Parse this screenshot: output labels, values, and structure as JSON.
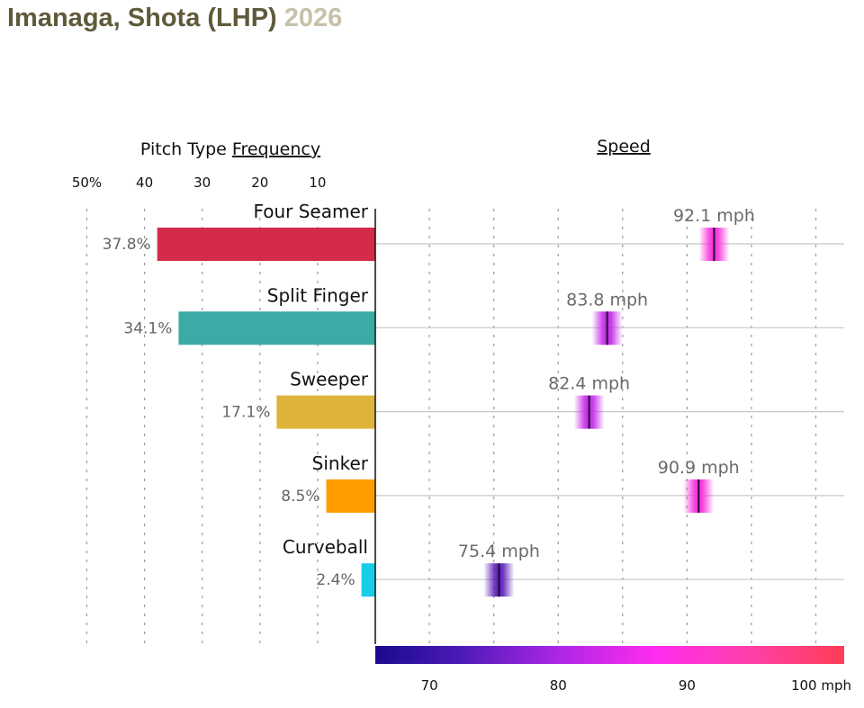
{
  "header": {
    "player": "Imanaga, Shota (LHP)",
    "year": "2026"
  },
  "chart_data": {
    "type": "bar",
    "freq_title_plain": "Pitch Type ",
    "freq_title_underlined": "Frequency",
    "speed_title": "Speed",
    "freq_ticks": [
      "50%",
      "40",
      "30",
      "20",
      "10"
    ],
    "freq_tick_values": [
      50,
      40,
      30,
      20,
      10
    ],
    "speed_ticks": [
      "70",
      "80",
      "90",
      "100 mph"
    ],
    "speed_tick_values": [
      70,
      80,
      90,
      100
    ],
    "speed_range": [
      65.8,
      102.2
    ],
    "categories": [
      "Four Seamer",
      "Split Finger",
      "Sweeper",
      "Sinker",
      "Curveball"
    ],
    "frequency_labels": [
      "37.8%",
      "34.1%",
      "17.1%",
      "8.5%",
      "2.4%"
    ],
    "frequency": [
      37.8,
      34.1,
      17.1,
      8.5,
      2.4
    ],
    "speed_labels": [
      "92.1 mph",
      "83.8 mph",
      "82.4 mph",
      "90.9 mph",
      "75.4 mph"
    ],
    "speed": [
      92.1,
      83.8,
      82.4,
      90.9,
      75.4
    ],
    "bar_colors": [
      "#d42b4a",
      "#3aaba5",
      "#deb33a",
      "#ff9d00",
      "#18cde8"
    ]
  }
}
